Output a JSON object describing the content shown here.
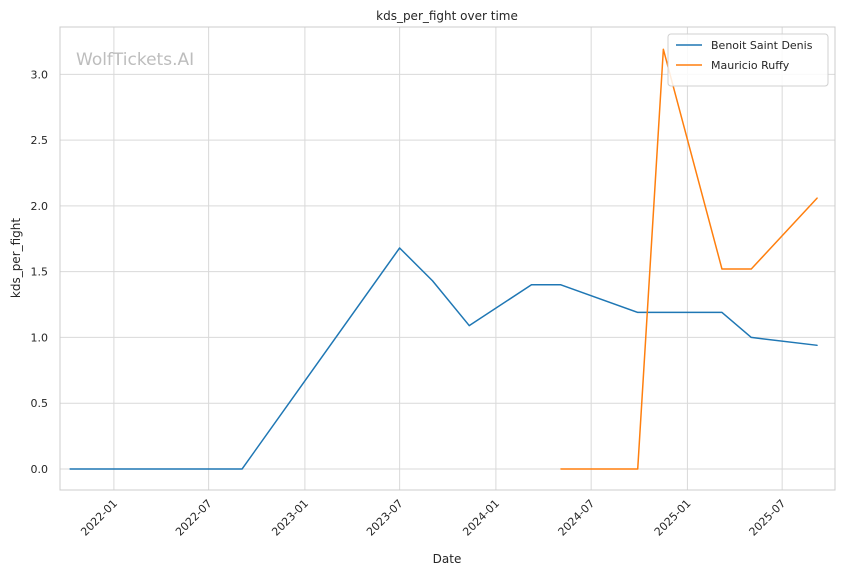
{
  "chart_data": {
    "type": "line",
    "title": "kds_per_fight over time",
    "xlabel": "Date",
    "ylabel": "kds_per_fight",
    "watermark": "WolfTickets.AI",
    "x_ticks": [
      "2022-01",
      "2022-07",
      "2023-01",
      "2023-07",
      "2024-01",
      "2024-07",
      "2025-01",
      "2025-07"
    ],
    "y_ticks": [
      "0.0",
      "0.5",
      "1.0",
      "1.5",
      "2.0",
      "2.5",
      "3.0"
    ],
    "xlim": [
      "2021-09-20",
      "2025-10-10"
    ],
    "ylim": [
      -0.16,
      3.36
    ],
    "grid": true,
    "legend_position": "top-right",
    "series": [
      {
        "name": "Benoit Saint Denis",
        "color": "#1f77b4",
        "points": [
          {
            "x": "2021-10-09",
            "y": 0.0
          },
          {
            "x": "2022-09-03",
            "y": 0.0
          },
          {
            "x": "2023-07-01",
            "y": 1.68
          },
          {
            "x": "2023-09-02",
            "y": 1.43
          },
          {
            "x": "2023-11-11",
            "y": 1.09
          },
          {
            "x": "2024-03-09",
            "y": 1.4
          },
          {
            "x": "2024-05-04",
            "y": 1.4
          },
          {
            "x": "2024-09-28",
            "y": 1.19
          },
          {
            "x": "2025-03-08",
            "y": 1.19
          },
          {
            "x": "2025-05-03",
            "y": 1.0
          },
          {
            "x": "2025-09-06",
            "y": 0.94
          }
        ]
      },
      {
        "name": "Mauricio Ruffy",
        "color": "#ff7f0e",
        "points": [
          {
            "x": "2024-05-04",
            "y": 0.0
          },
          {
            "x": "2024-09-28",
            "y": 0.0
          },
          {
            "x": "2024-11-16",
            "y": 3.19
          },
          {
            "x": "2025-03-08",
            "y": 1.52
          },
          {
            "x": "2025-05-03",
            "y": 1.52
          },
          {
            "x": "2025-09-06",
            "y": 2.06
          }
        ]
      }
    ]
  }
}
